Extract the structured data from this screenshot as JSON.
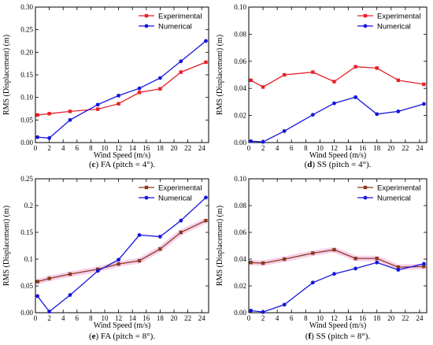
{
  "chart_data": [
    {
      "type": "line",
      "caption_letter": "c",
      "caption_rest": " FA (pitch = 4°).",
      "xlabel": "Wind Speed (m/s)",
      "ylabel": "RMS (Displacement) (m)",
      "xlim": [
        0,
        25
      ],
      "ylim": [
        0,
        0.3
      ],
      "xticks": [
        "0",
        "2",
        "4",
        "6",
        "8",
        "10",
        "12",
        "14",
        "16",
        "18",
        "20",
        "22",
        "24"
      ],
      "yticks": [
        "0.00",
        "0.05",
        "0.10",
        "0.15",
        "0.20",
        "0.25",
        "0.30"
      ],
      "legend_position": "top-left",
      "series": [
        {
          "name": "Experimental",
          "color": "#e8202a",
          "marker": "square",
          "x": [
            0.3,
            2,
            5,
            9,
            12,
            15,
            18,
            21,
            24.6
          ],
          "y": [
            0.061,
            0.064,
            0.069,
            0.074,
            0.086,
            0.111,
            0.119,
            0.156,
            0.178
          ]
        },
        {
          "name": "Numerical",
          "color": "#1515dd",
          "marker": "circle",
          "x": [
            0.3,
            2,
            5,
            9,
            12,
            15,
            18,
            21,
            24.6
          ],
          "y": [
            0.012,
            0.01,
            0.05,
            0.084,
            0.104,
            0.12,
            0.143,
            0.18,
            0.225
          ]
        }
      ]
    },
    {
      "type": "line",
      "caption_letter": "d",
      "caption_rest": " SS (pitch = 4°).",
      "xlabel": "Wind Speed (m/s)",
      "ylabel": "RMS (Displacement) (m)",
      "xlim": [
        0,
        25
      ],
      "ylim": [
        0,
        0.1
      ],
      "xticks": [
        "0",
        "2",
        "4",
        "6",
        "8",
        "10",
        "12",
        "14",
        "16",
        "18",
        "20",
        "22",
        "24"
      ],
      "yticks": [
        "0.00",
        "0.02",
        "0.04",
        "0.06",
        "0.08",
        "0.10"
      ],
      "legend_position": "top-right",
      "series": [
        {
          "name": "Experimental",
          "color": "#e8202a",
          "marker": "square",
          "x": [
            0.3,
            2,
            5,
            9,
            12,
            15,
            18,
            21,
            24.6
          ],
          "y": [
            0.046,
            0.041,
            0.05,
            0.052,
            0.045,
            0.056,
            0.055,
            0.046,
            0.043
          ]
        },
        {
          "name": "Numerical",
          "color": "#1515dd",
          "marker": "circle",
          "x": [
            0.3,
            2,
            5,
            9,
            12,
            15,
            18,
            21,
            24.6
          ],
          "y": [
            0.001,
            0.0005,
            0.0085,
            0.0205,
            0.029,
            0.0335,
            0.021,
            0.023,
            0.0285
          ]
        }
      ]
    },
    {
      "type": "line",
      "caption_letter": "e",
      "caption_rest": " FA (pitch = 8°).",
      "xlabel": "Wind Speed (m/s)",
      "ylabel": "RMS (Displacement) (m)",
      "xlim": [
        0,
        25
      ],
      "ylim": [
        0,
        0.25
      ],
      "xticks": [
        "0",
        "2",
        "4",
        "6",
        "8",
        "10",
        "12",
        "14",
        "16",
        "18",
        "20",
        "22",
        "24"
      ],
      "yticks": [
        "0.00",
        "0.05",
        "0.1",
        "0.15",
        "0.2",
        "0.25"
      ],
      "legend_position": "top-left",
      "series": [
        {
          "name": "Experimental",
          "color": "#8b3a1e",
          "marker": "square",
          "band": "#f4c6e6",
          "x": [
            0.3,
            2,
            5,
            9,
            12,
            15,
            18,
            21,
            24.6
          ],
          "y": [
            0.058,
            0.064,
            0.072,
            0.081,
            0.091,
            0.097,
            0.119,
            0.15,
            0.172
          ]
        },
        {
          "name": "Numerical",
          "color": "#1515dd",
          "marker": "circle",
          "x": [
            0.3,
            2,
            5,
            9,
            12,
            15,
            18,
            21,
            24.6
          ],
          "y": [
            0.031,
            0.002,
            0.033,
            0.078,
            0.099,
            0.145,
            0.142,
            0.172,
            0.215
          ]
        }
      ]
    },
    {
      "type": "line",
      "caption_letter": "f",
      "caption_rest": " SS (pitch = 8°).",
      "xlabel": "Wind Speed (m/s)",
      "ylabel": "RMS (Displacement) (m)",
      "xlim": [
        0,
        25
      ],
      "ylim": [
        0,
        0.1
      ],
      "xticks": [
        "0",
        "2",
        "4",
        "6",
        "8",
        "10",
        "12",
        "14",
        "16",
        "18",
        "20",
        "22",
        "24"
      ],
      "yticks": [
        "0.00",
        "0.02",
        "0.04",
        "0.06",
        "0.08",
        "0.10"
      ],
      "legend_position": "top-right",
      "series": [
        {
          "name": "Experimental",
          "color": "#8b3a1e",
          "marker": "square",
          "band": "#f4c6e6",
          "x": [
            0.3,
            2,
            5,
            9,
            12,
            15,
            18,
            21,
            24.6
          ],
          "y": [
            0.0375,
            0.037,
            0.04,
            0.0445,
            0.047,
            0.0405,
            0.0405,
            0.034,
            0.0345
          ]
        },
        {
          "name": "Numerical",
          "color": "#1515dd",
          "marker": "circle",
          "x": [
            0.3,
            2,
            5,
            9,
            12,
            15,
            18,
            21,
            24.6
          ],
          "y": [
            0.0015,
            0.0005,
            0.006,
            0.0225,
            0.029,
            0.033,
            0.0375,
            0.032,
            0.0365
          ]
        }
      ]
    }
  ]
}
